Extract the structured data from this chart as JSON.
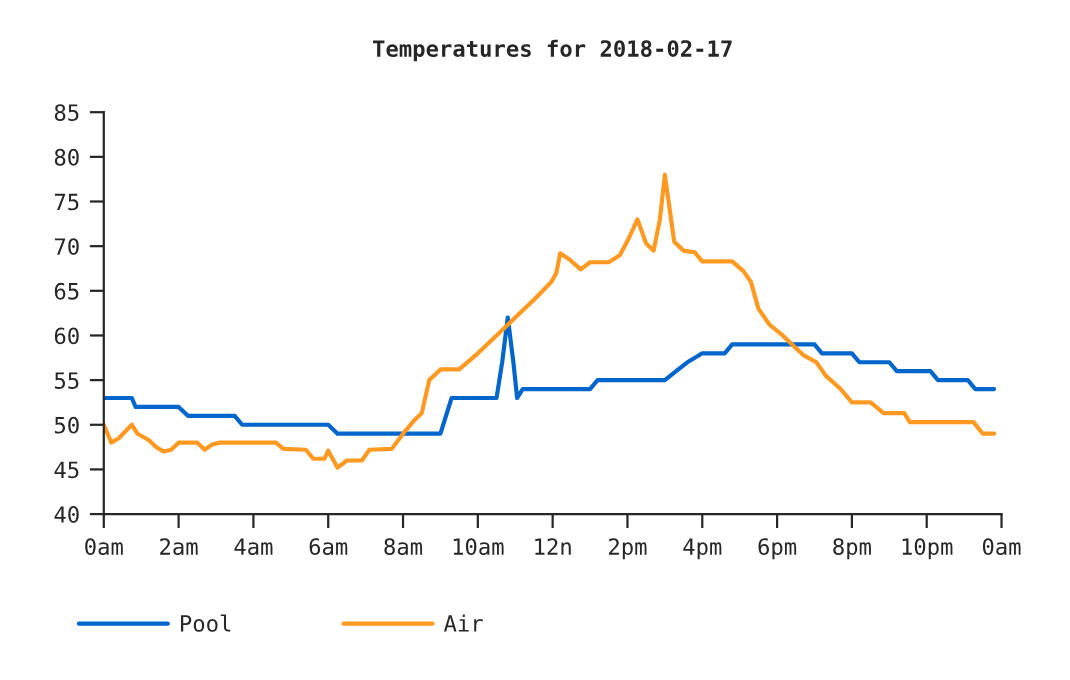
{
  "chart_data": {
    "type": "line",
    "title": "Temperatures for 2018-02-17",
    "xlim": [
      "2018-02-17T00:00",
      "2018-02-18T00:00"
    ],
    "ylim": [
      40,
      85
    ],
    "xticks": [
      {
        "value": "2018-02-17T00:00",
        "label": "0am"
      },
      {
        "value": "2018-02-17T02:00",
        "label": "2am"
      },
      {
        "value": "2018-02-17T04:00",
        "label": "4am"
      },
      {
        "value": "2018-02-17T06:00",
        "label": "6am"
      },
      {
        "value": "2018-02-17T08:00",
        "label": "8am"
      },
      {
        "value": "2018-02-17T10:00",
        "label": "10am"
      },
      {
        "value": "2018-02-17T12:00",
        "label": "12n"
      },
      {
        "value": "2018-02-17T14:00",
        "label": "2pm"
      },
      {
        "value": "2018-02-17T16:00",
        "label": "4pm"
      },
      {
        "value": "2018-02-17T18:00",
        "label": "6pm"
      },
      {
        "value": "2018-02-17T20:00",
        "label": "8pm"
      },
      {
        "value": "2018-02-17T22:00",
        "label": "10pm"
      },
      {
        "value": "2018-02-18T00:00",
        "label": "0am"
      }
    ],
    "yticks": [
      40,
      45,
      50,
      55,
      60,
      65,
      70,
      75,
      80,
      85
    ],
    "grid": false,
    "legend": "bottom left",
    "marker": "none",
    "line_style": "solid",
    "series": [
      {
        "name": "Pool",
        "color": "#0066cc",
        "x": [
          "2018-02-17T00:00",
          "2018-02-17T00:45",
          "2018-02-17T00:51",
          "2018-02-17T02:00",
          "2018-02-17T02:15",
          "2018-02-17T03:30",
          "2018-02-17T03:42",
          "2018-02-17T06:00",
          "2018-02-17T06:15",
          "2018-02-17T09:00",
          "2018-02-17T09:18",
          "2018-02-17T10:30",
          "2018-02-17T10:39",
          "2018-02-17T10:48",
          "2018-02-17T10:57",
          "2018-02-17T11:03",
          "2018-02-17T11:12",
          "2018-02-17T13:00",
          "2018-02-17T13:12",
          "2018-02-17T15:00",
          "2018-02-17T15:18",
          "2018-02-17T15:36",
          "2018-02-17T16:00",
          "2018-02-17T16:36",
          "2018-02-17T16:48",
          "2018-02-17T19:00",
          "2018-02-17T19:12",
          "2018-02-17T20:00",
          "2018-02-17T20:12",
          "2018-02-17T21:00",
          "2018-02-17T21:12",
          "2018-02-17T22:06",
          "2018-02-17T22:18",
          "2018-02-17T23:06",
          "2018-02-17T23:18",
          "2018-02-17T23:48"
        ],
        "values": [
          53,
          53,
          52,
          52,
          51,
          51,
          50,
          50,
          49,
          49,
          53,
          53,
          57,
          62,
          57,
          53,
          54,
          54,
          55,
          55,
          56,
          57,
          58,
          58,
          59,
          59,
          58,
          58,
          57,
          57,
          56,
          56,
          55,
          55,
          54,
          54
        ]
      },
      {
        "name": "Air",
        "color": "#ff9922",
        "x": [
          "2018-02-17T00:00",
          "2018-02-17T00:12",
          "2018-02-17T00:24",
          "2018-02-17T00:45",
          "2018-02-17T00:54",
          "2018-02-17T01:12",
          "2018-02-17T01:24",
          "2018-02-17T01:36",
          "2018-02-17T01:48",
          "2018-02-17T02:00",
          "2018-02-17T02:30",
          "2018-02-17T02:42",
          "2018-02-17T02:54",
          "2018-02-17T03:06",
          "2018-02-17T04:36",
          "2018-02-17T04:48",
          "2018-02-17T05:24",
          "2018-02-17T05:36",
          "2018-02-17T05:54",
          "2018-02-17T06:00",
          "2018-02-17T06:15",
          "2018-02-17T06:30",
          "2018-02-17T06:54",
          "2018-02-17T07:06",
          "2018-02-17T07:42",
          "2018-02-17T08:00",
          "2018-02-17T08:18",
          "2018-02-17T08:30",
          "2018-02-17T08:42",
          "2018-02-17T09:00",
          "2018-02-17T09:30",
          "2018-02-17T10:00",
          "2018-02-17T10:30",
          "2018-02-17T11:00",
          "2018-02-17T11:30",
          "2018-02-17T11:58",
          "2018-02-17T12:06",
          "2018-02-17T12:12",
          "2018-02-17T12:27",
          "2018-02-17T12:45",
          "2018-02-17T13:00",
          "2018-02-17T13:30",
          "2018-02-17T13:48",
          "2018-02-17T14:03",
          "2018-02-17T14:16",
          "2018-02-17T14:30",
          "2018-02-17T14:42",
          "2018-02-17T14:52",
          "2018-02-17T15:00",
          "2018-02-17T15:06",
          "2018-02-17T15:15",
          "2018-02-17T15:30",
          "2018-02-17T15:48",
          "2018-02-17T16:00",
          "2018-02-17T16:48",
          "2018-02-17T17:06",
          "2018-02-17T17:18",
          "2018-02-17T17:30",
          "2018-02-17T17:48",
          "2018-02-17T18:09",
          "2018-02-17T18:24",
          "2018-02-17T18:42",
          "2018-02-17T19:03",
          "2018-02-17T19:18",
          "2018-02-17T19:42",
          "2018-02-17T20:00",
          "2018-02-17T20:30",
          "2018-02-17T20:51",
          "2018-02-17T21:24",
          "2018-02-17T21:33",
          "2018-02-17T23:15",
          "2018-02-17T23:30",
          "2018-02-17T23:48"
        ],
        "values": [
          50,
          48,
          48.5,
          50,
          49,
          48.3,
          47.5,
          47,
          47.2,
          48,
          48,
          47.2,
          47.8,
          48,
          48,
          47.3,
          47.2,
          46.2,
          46.2,
          47.1,
          45.2,
          46,
          46,
          47.2,
          47.3,
          49,
          50.5,
          51.3,
          55,
          56.2,
          56.2,
          58,
          60,
          62,
          64,
          66,
          67,
          69.2,
          68.5,
          67.4,
          68.2,
          68.2,
          69,
          71,
          73,
          70.3,
          69.5,
          73,
          78,
          75,
          70.5,
          69.5,
          69.3,
          68.3,
          68.3,
          67.2,
          66,
          63,
          61.2,
          60,
          59,
          57.8,
          57,
          55.5,
          54,
          52.5,
          52.5,
          51.3,
          51.3,
          50.3,
          50.3,
          49,
          49
        ]
      }
    ]
  }
}
